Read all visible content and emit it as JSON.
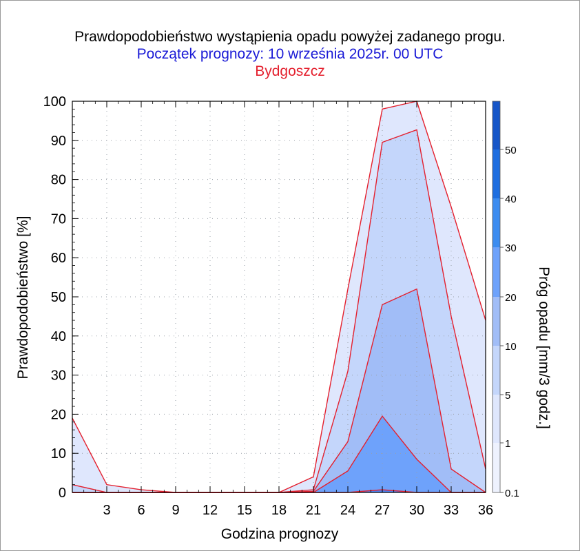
{
  "titles": {
    "line1": "Prawdopodobieństwo wystąpienia opadu powyżej zadanego progu.",
    "line2": "Początek prognozy: 10 września 2025r. 00 UTC",
    "line3": "Bydgoszcz"
  },
  "chart_data": {
    "type": "area",
    "xlabel": "Godzina prognozy",
    "ylabel": "Prawdopodobieństwo [%]",
    "colorbar_label": "Próg opadu [mm/3 godz.]",
    "xlim": [
      0,
      36
    ],
    "ylim": [
      0,
      100
    ],
    "xticks": [
      3,
      6,
      9,
      12,
      15,
      18,
      21,
      24,
      27,
      30,
      33,
      36
    ],
    "yticks": [
      0,
      10,
      20,
      30,
      40,
      50,
      60,
      70,
      80,
      90,
      100
    ],
    "x": [
      0,
      3,
      6,
      9,
      12,
      15,
      18,
      21,
      24,
      27,
      30,
      33,
      36
    ],
    "series": [
      {
        "name": "0.1",
        "color": "#dfe7fd",
        "values": [
          19,
          2,
          0.7,
          0,
          0,
          0,
          0,
          4,
          52,
          98,
          100,
          73,
          44
        ]
      },
      {
        "name": "1",
        "color": "#c4d6fb",
        "values": [
          2,
          0,
          0,
          0,
          0,
          0,
          0,
          0.7,
          31,
          89.5,
          92.7,
          45,
          6
        ]
      },
      {
        "name": "5",
        "color": "#a1bdf7",
        "values": [
          0,
          0,
          0,
          0,
          0,
          0,
          0,
          0.3,
          13,
          48,
          52,
          6,
          0
        ]
      },
      {
        "name": "10",
        "color": "#6ea2fb",
        "values": [
          0,
          0,
          0,
          0,
          0,
          0,
          0,
          0,
          5.5,
          19.5,
          8.5,
          0,
          0
        ]
      },
      {
        "name": "20",
        "color": "#4d84f2",
        "values": [
          0,
          0,
          0,
          0,
          0,
          0,
          0,
          0,
          0,
          0.7,
          0,
          0,
          0
        ]
      }
    ],
    "colorbar": {
      "labels": [
        "0.1",
        "1",
        "5",
        "10",
        "20",
        "30",
        "40",
        "50"
      ],
      "colors": [
        "#eef2fe",
        "#dfe7fd",
        "#c4d6fb",
        "#a1bdf7",
        "#6ea2fb",
        "#3c8cf0",
        "#1e6ee0",
        "#1756c8",
        "#0e40a8"
      ]
    },
    "grid": true
  }
}
